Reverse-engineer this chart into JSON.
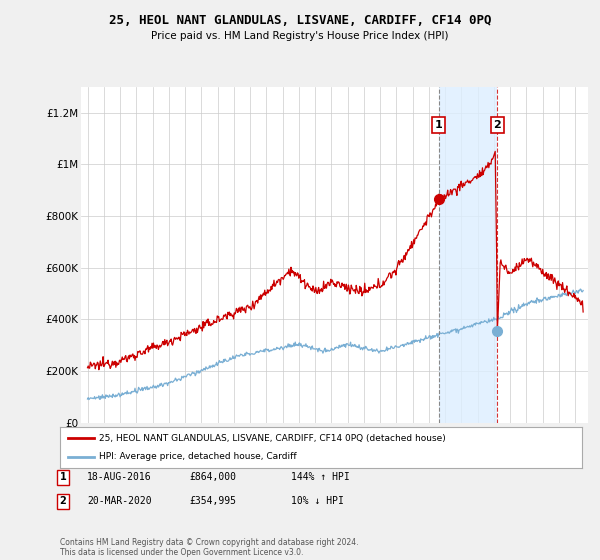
{
  "title": "25, HEOL NANT GLANDULAS, LISVANE, CARDIFF, CF14 0PQ",
  "subtitle": "Price paid vs. HM Land Registry's House Price Index (HPI)",
  "ylabel_ticks": [
    "£0",
    "£200K",
    "£400K",
    "£600K",
    "£800K",
    "£1M",
    "£1.2M"
  ],
  "ytick_values": [
    0,
    200000,
    400000,
    600000,
    800000,
    1000000,
    1200000
  ],
  "ylim": [
    0,
    1300000
  ],
  "xlim_start": 1994.6,
  "xlim_end": 2025.8,
  "red_color": "#cc0000",
  "blue_color": "#7aafd4",
  "shade_color": "#ddeeff",
  "marker1_date": 2016.62,
  "marker1_value": 864000,
  "marker2_date": 2020.22,
  "marker2_value": 354995,
  "legend_label1": "25, HEOL NANT GLANDULAS, LISVANE, CARDIFF, CF14 0PQ (detached house)",
  "legend_label2": "HPI: Average price, detached house, Cardiff",
  "table_row1": [
    "1",
    "18-AUG-2016",
    "£864,000",
    "144% ↑ HPI"
  ],
  "table_row2": [
    "2",
    "20-MAR-2020",
    "£354,995",
    "10% ↓ HPI"
  ],
  "footer": "Contains HM Land Registry data © Crown copyright and database right 2024.\nThis data is licensed under the Open Government Licence v3.0.",
  "background_color": "#f0f0f0",
  "plot_bg_color": "#ffffff"
}
